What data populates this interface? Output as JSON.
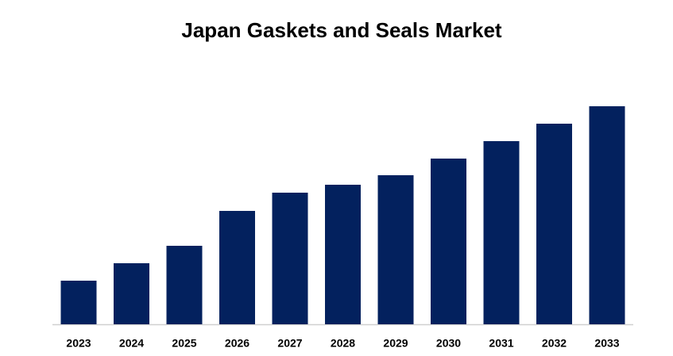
{
  "chart_data": {
    "type": "bar",
    "title": "Japan Gaskets and Seals Market",
    "categories": [
      "2023",
      "2024",
      "2025",
      "2026",
      "2027",
      "2028",
      "2029",
      "2030",
      "2031",
      "2032",
      "2033"
    ],
    "values": [
      55,
      77,
      99,
      143,
      166,
      176,
      188,
      209,
      231,
      253,
      275
    ],
    "color": "#03215e"
  }
}
